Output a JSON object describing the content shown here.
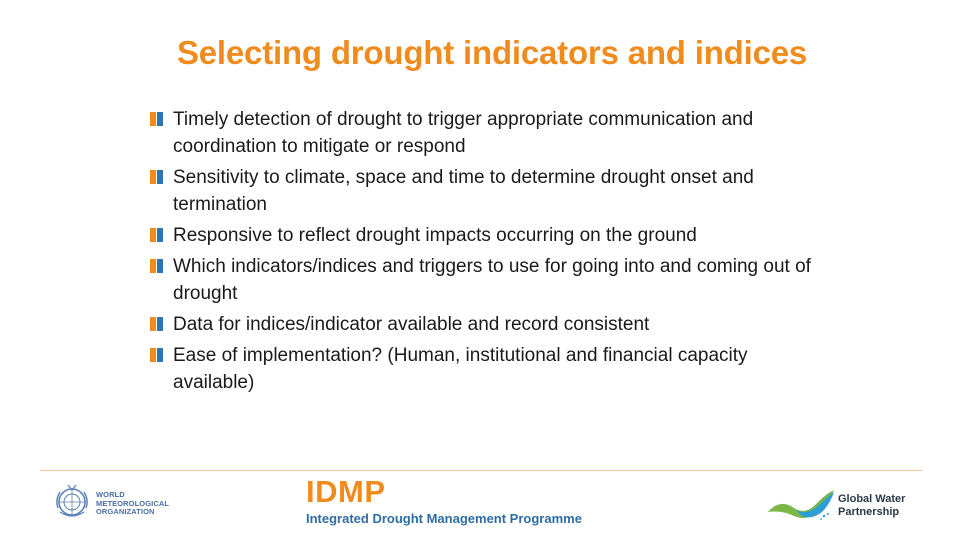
{
  "slide": {
    "title": "Selecting drought indicators and indices",
    "bullets": [
      "Timely detection of drought to trigger appropriate communication and coordination to mitigate or respond",
      "Sensitivity to climate, space and time to determine drought onset and termination",
      "Responsive to reflect drought impacts occurring on the ground",
      "Which indicators/indices and triggers to use for  going into and coming out of drought",
      "Data for indices/indicator available and record consistent",
      "Ease of implementation? (Human, institutional and financial capacity available)"
    ]
  },
  "footer": {
    "wmo": {
      "icon": "wmo-emblem-icon",
      "lines": [
        "WORLD",
        "METEOROLOGICAL",
        "ORGANIZATION"
      ]
    },
    "idmp": {
      "mark": "IDMP",
      "name": "Integrated Drought Management Programme"
    },
    "gwp": {
      "icon": "gwp-wave-icon",
      "lines": [
        "Global Water",
        "Partnership"
      ]
    }
  },
  "colors": {
    "accent_orange": "#F08C1E",
    "accent_blue": "#2E75B6",
    "text": "#1a1a1a"
  }
}
